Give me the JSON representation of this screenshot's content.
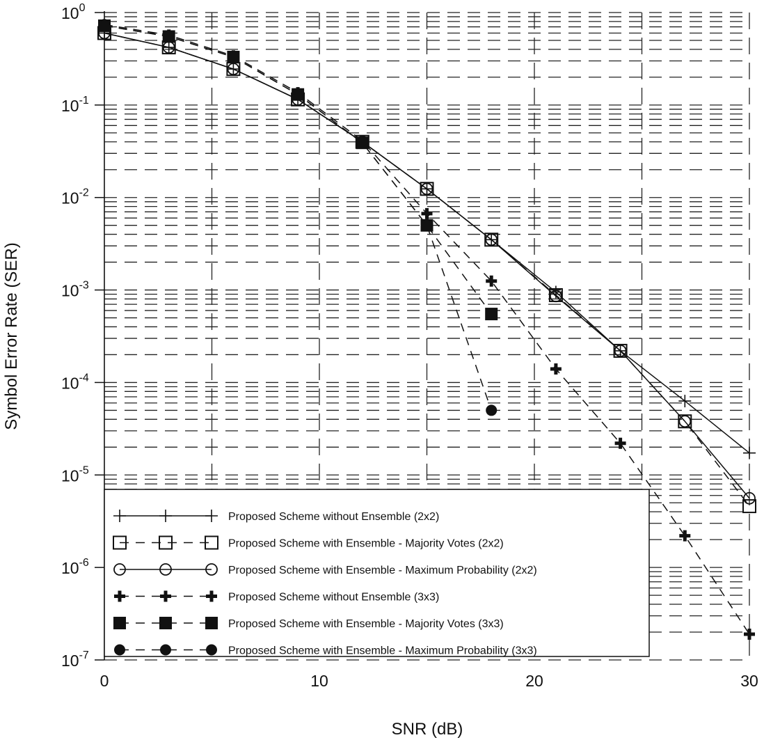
{
  "chart_data": {
    "type": "line",
    "title": "",
    "xlabel": "SNR (dB)",
    "ylabel": "Symbol Error Rate (SER)",
    "xlim": [
      0,
      30
    ],
    "ylim": [
      1e-07,
      1
    ],
    "yscale": "log",
    "grid": true,
    "legend_position": "bottom-left",
    "xticks": [
      0,
      10,
      20,
      30
    ],
    "xtick_labels": [
      "0",
      "10",
      "20",
      "30"
    ],
    "yticks": [
      0,
      -1,
      -2,
      -3,
      -4,
      -5,
      -6,
      -7
    ],
    "ytick_base": "10",
    "ytick_exponents": [
      "0",
      "-1",
      "-2",
      "-3",
      "-4",
      "-5",
      "-6",
      "-7"
    ],
    "x": [
      0,
      3,
      6,
      9,
      12,
      15,
      18,
      21,
      24,
      27,
      30
    ],
    "series": [
      {
        "name": "Proposed Scheme without Ensemble (2x2)",
        "marker": "plus-thin",
        "line": "solid",
        "values": [
          0.6,
          0.42,
          0.245,
          0.115,
          0.04,
          0.0124,
          0.0035,
          0.00095,
          0.00022,
          6.3e-05,
          1.73e-05
        ]
      },
      {
        "name": "Proposed Scheme with Ensemble - Majority Votes (2x2)",
        "marker": "square-open",
        "line": "dashed",
        "values": [
          0.6,
          0.42,
          0.245,
          0.115,
          0.04,
          0.0124,
          0.0035,
          0.00088,
          0.00022,
          3.8e-05,
          4.6e-06
        ]
      },
      {
        "name": "Proposed Scheme with Ensemble - Maximum Probability (2x2)",
        "marker": "circle-open",
        "line": "solid",
        "values": [
          0.6,
          0.42,
          0.245,
          0.115,
          0.04,
          0.0124,
          0.0035,
          0.00086,
          0.00022,
          3.8e-05,
          5.6e-06
        ]
      },
      {
        "name": "Proposed Scheme without Ensemble (3x3)",
        "marker": "plus-bold",
        "line": "dashed",
        "values": [
          0.74,
          0.57,
          0.34,
          0.136,
          0.041,
          0.0067,
          0.00125,
          0.00014,
          2.2e-05,
          2.2e-06,
          1.9e-07
        ]
      },
      {
        "name": "Proposed Scheme with Ensemble - Majority Votes (3x3)",
        "marker": "square-filled",
        "line": "dashed",
        "values": [
          0.72,
          0.55,
          0.33,
          0.13,
          0.039,
          0.005,
          0.00055,
          null,
          null,
          null,
          null
        ]
      },
      {
        "name": "Proposed Scheme with Ensemble - Maximum Probability (3x3)",
        "marker": "circle-filled",
        "line": "dashed",
        "values": [
          0.72,
          0.55,
          0.33,
          0.13,
          0.039,
          0.005,
          5e-05,
          null,
          null,
          null,
          null
        ]
      }
    ]
  }
}
